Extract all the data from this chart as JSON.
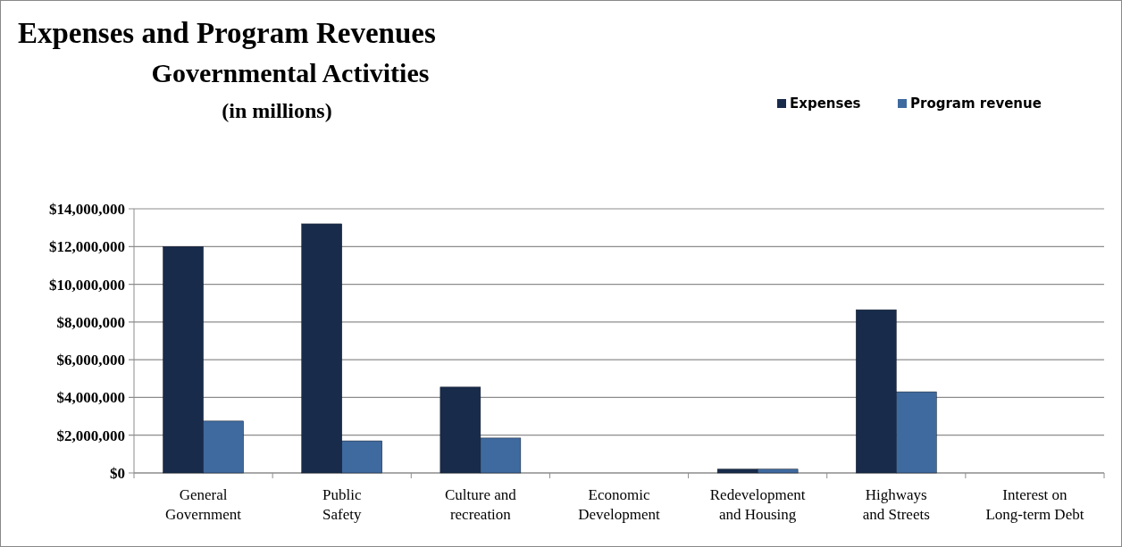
{
  "chart_data": {
    "type": "bar",
    "title": "Expenses and Program Revenues",
    "subtitle": "Governmental Activities\n(in millions)",
    "categories": [
      "General Government",
      "Public Safety",
      "Culture and recreation",
      "Economic Development",
      "Redevelopment and Housing",
      "Highways and Streets",
      "Interest on Long-term Debt"
    ],
    "series": [
      {
        "name": "Expenses",
        "color": "#182b4a",
        "values": [
          12000000,
          13200000,
          4550000,
          0,
          200000,
          8650000,
          0
        ]
      },
      {
        "name": "Program revenue",
        "color": "#3f6a9f",
        "values": [
          2750000,
          1700000,
          1850000,
          0,
          200000,
          4300000,
          0
        ]
      }
    ],
    "ylim": [
      0,
      14000000
    ],
    "yticks": [
      {
        "value": 0,
        "label": "$0"
      },
      {
        "value": 2000000,
        "label": "$2,000,000"
      },
      {
        "value": 4000000,
        "label": "$4,000,000"
      },
      {
        "value": 6000000,
        "label": "$6,000,000"
      },
      {
        "value": 8000000,
        "label": "$8,000,000"
      },
      {
        "value": 10000000,
        "label": "$10,000,000"
      },
      {
        "value": 12000000,
        "label": "$12,000,000"
      },
      {
        "value": 14000000,
        "label": "$14,000,000"
      }
    ],
    "grid": "y",
    "legend": "top right"
  }
}
